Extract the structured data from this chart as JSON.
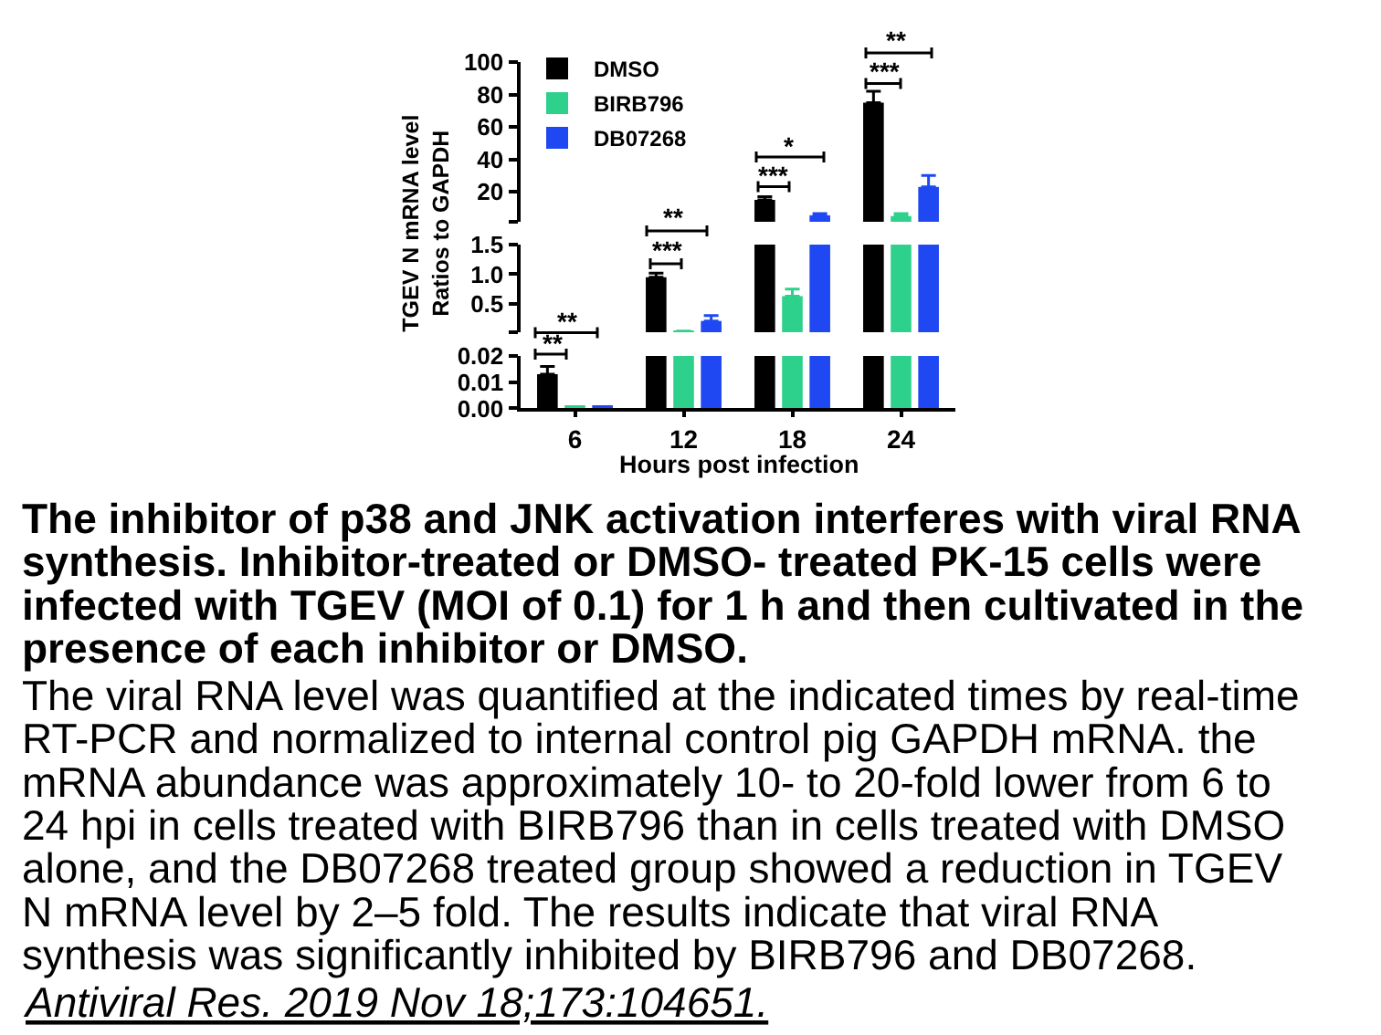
{
  "chart_data": [
    {
      "type": "bar",
      "categories": [
        "6",
        "12",
        "18",
        "24"
      ],
      "series": [
        {
          "name": "DMSO",
          "color": "#000000",
          "values": [
            null,
            null,
            15,
            75
          ],
          "errors": [
            null,
            null,
            [
              15,
              17
            ],
            [
              75,
              82
            ]
          ]
        },
        {
          "name": "BIRB796",
          "color": "#2ed18c",
          "values": [
            null,
            null,
            null,
            5
          ],
          "errors": [
            null,
            null,
            null,
            [
              5,
              6.5
            ]
          ]
        },
        {
          "name": "DB07268",
          "color": "#1f48f2",
          "values": [
            null,
            null,
            5.5,
            23
          ],
          "errors": [
            null,
            null,
            [
              5.5,
              6.5
            ],
            [
              23,
              30
            ]
          ]
        }
      ],
      "ylim": [
        1.5,
        100
      ],
      "yticks": [
        {
          "value": 1.5,
          "label": null
        },
        20,
        40,
        60,
        80,
        100
      ],
      "tick_labels": "y",
      "legend": "top left",
      "annotations": [
        "**",
        "*",
        "***",
        "**",
        "***"
      ]
    },
    {
      "type": "bar",
      "categories": [
        "6",
        "12",
        "18",
        "24"
      ],
      "series": [
        {
          "color": "#000000",
          "values": [
            null,
            0.95,
            1.5,
            1.5
          ],
          "errors": [
            null,
            [
              0.95,
              1.02
            ],
            null,
            null
          ]
        },
        {
          "color": "#2ed18c",
          "values": [
            null,
            0.04,
            0.63,
            1.5
          ],
          "errors": [
            null,
            null,
            [
              0.63,
              0.75
            ],
            null
          ]
        },
        {
          "color": "#1f48f2",
          "values": [
            null,
            0.21,
            1.5,
            1.5
          ],
          "errors": [
            null,
            [
              0.21,
              0.3
            ],
            null,
            null
          ]
        }
      ],
      "ylim": [
        0.02,
        1.5
      ],
      "yticks": [
        {
          "value": 0.02,
          "label": null
        },
        0.5,
        {
          "value": 1.0,
          "label": "1.0"
        },
        1.5
      ],
      "tick_labels": "y",
      "ylabel": "TGEV N mRNA level\nRatios to GAPDH",
      "annotations": [
        "***",
        "**"
      ]
    },
    {
      "type": "bar",
      "categories": [
        "6",
        "12",
        "18",
        "24"
      ],
      "series": [
        {
          "color": "#000000",
          "values": [
            0.013,
            0.02,
            0.02,
            0.02
          ],
          "errors": [
            [
              0.013,
              0.016
            ],
            null,
            null,
            null
          ]
        },
        {
          "color": "#2ed18c",
          "values": [
            0.001,
            0.02,
            0.02,
            0.02
          ]
        },
        {
          "color": "#1f48f2",
          "values": [
            0.0005,
            0.02,
            0.02,
            0.02
          ]
        }
      ],
      "ylim": [
        0,
        0.02
      ],
      "yticks": [
        {
          "value": 0,
          "label": "0.00"
        },
        {
          "value": 0.01,
          "label": "0.01"
        },
        {
          "value": 0.02,
          "label": "0.02"
        }
      ],
      "xlabel": "Hours post infection",
      "title": "The inhibitor of p38 and JNK activation interferes with viral RNA\nsynthesis. Inhibitor-treated or DMSO- treated PK-15 cells were\ninfected with TGEV (MOI of 0.1) for 1 h and then cultivated in the\npresence of each inhibitor or DMSO.",
      "subtitle": "The viral RNA level was quantified at the indicated times by real-time\nRT-PCR and normalized to internal control pig GAPDH mRNA. the\nmRNA abundance was approximately 10- to 20-fold lower from 6 to\n24 hpi in cells treated with BIRB796 than in cells treated with DMSO\nalone, and the DB07268 treated group showed a reduction in TGEV\nN mRNA level by 2–5 fold. The results indicate that viral RNA\nsynthesis was significantly inhibited by BIRB796 and DB07268.",
      "annotations": [
        "**",
        "Antiviral Res. 2019 Nov 18;173:104651."
      ]
    }
  ]
}
